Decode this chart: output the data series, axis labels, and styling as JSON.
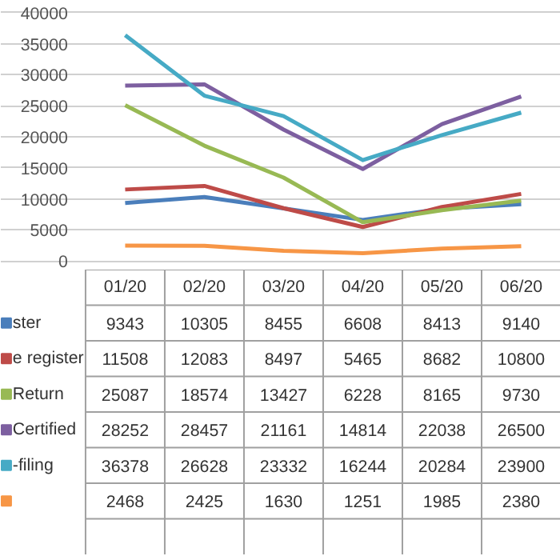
{
  "chart_data": {
    "type": "line",
    "categories": [
      "01/20",
      "02/20",
      "03/20",
      "04/20",
      "05/20",
      "06/20"
    ],
    "series": [
      {
        "name": "ster",
        "color": "#4a7ebb",
        "values": [
          9343,
          10305,
          8455,
          6608,
          8413,
          9140
        ]
      },
      {
        "name": "e register",
        "color": "#be4b48",
        "values": [
          11508,
          12083,
          8497,
          5465,
          8682,
          10800
        ]
      },
      {
        "name": "Return",
        "color": "#98b954",
        "values": [
          25087,
          18574,
          13427,
          6228,
          8165,
          9730
        ]
      },
      {
        "name": "Certified",
        "color": "#7d5fa0",
        "values": [
          28252,
          28457,
          21161,
          14814,
          22038,
          26500
        ]
      },
      {
        "name": "-filing",
        "color": "#46aac5",
        "values": [
          36378,
          26628,
          23332,
          16244,
          20284,
          23900
        ]
      },
      {
        "color": "#f79646",
        "values": [
          2468,
          2425,
          1630,
          1251,
          1985,
          2380
        ]
      }
    ],
    "ylim": [
      0,
      40000
    ],
    "yticks": [
      0,
      5000,
      10000,
      15000,
      20000,
      25000,
      30000,
      35000,
      40000
    ],
    "grid": "y",
    "data_labels": true,
    "legend": "bottom",
    "marker": "none",
    "line_style": "solid"
  }
}
